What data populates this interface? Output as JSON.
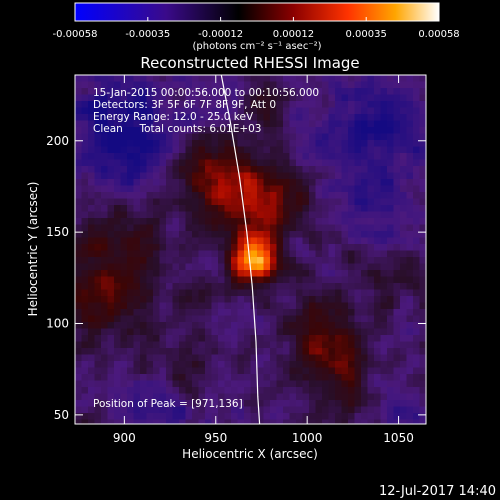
{
  "colorbar": {
    "ticks": [
      "-0.00058",
      "-0.00035",
      "-0.00012",
      "0.00012",
      "0.00035",
      "0.00058"
    ],
    "units_label": "(photons cm⁻² s⁻¹ asec⁻²)",
    "colors": [
      "#0000ff",
      "#4b0082",
      "#000000",
      "#8b0000",
      "#ff3300",
      "#ffa500",
      "#ffffff"
    ]
  },
  "image": {
    "title": "Reconstructed RHESSI Image",
    "info_lines": [
      "15-Jan-2015 00:00:56.000 to 00:10:56.000",
      "Detectors: 3F 5F 6F 7F 8F 9F, Att 0",
      "Energy Range: 12.0 - 25.0 keV",
      "Clean     Total counts: 6.01E+03"
    ],
    "peak_text": "Position of Peak = [971,136]",
    "timestamp": "12-Jul-2017 14:40"
  },
  "chart_data": {
    "type": "heatmap",
    "xlabel": "Heliocentric X (arcsec)",
    "ylabel": "Heliocentric Y (arcsec)",
    "xlim": [
      873,
      1065
    ],
    "ylim": [
      45,
      236
    ],
    "xticks": [
      900,
      950,
      1000,
      1050
    ],
    "yticks": [
      50,
      100,
      150,
      200
    ],
    "peak": [
      971,
      136
    ],
    "limb": [
      [
        953,
        236
      ],
      [
        958,
        210
      ],
      [
        963,
        180
      ],
      [
        967,
        150
      ],
      [
        970,
        120
      ],
      [
        972,
        90
      ],
      [
        973,
        60
      ],
      [
        974,
        45
      ]
    ]
  }
}
